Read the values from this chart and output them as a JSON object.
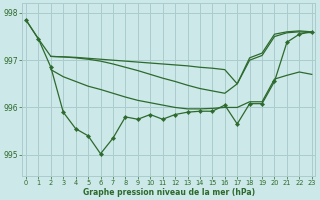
{
  "background_color": "#cce8e8",
  "grid_color": "#aacccc",
  "line_color": "#2d6a2d",
  "xlabel": "Graphe pression niveau de la mer (hPa)",
  "ylim": [
    994.55,
    998.2
  ],
  "xlim": [
    -0.3,
    23.3
  ],
  "yticks": [
    995,
    996,
    997,
    998
  ],
  "xticks": [
    0,
    1,
    2,
    3,
    4,
    5,
    6,
    7,
    8,
    9,
    10,
    11,
    12,
    13,
    14,
    15,
    16,
    17,
    18,
    19,
    20,
    21,
    22,
    23
  ],
  "series": [
    {
      "x": [
        0,
        1,
        2,
        3,
        4,
        5,
        6,
        7,
        8,
        9,
        10,
        11,
        12,
        13,
        14,
        15,
        16,
        17,
        18,
        19,
        20,
        21,
        22,
        23
      ],
      "y": [
        997.85,
        997.45,
        996.85,
        995.9,
        995.55,
        995.4,
        995.02,
        995.35,
        995.8,
        995.75,
        995.85,
        995.75,
        995.85,
        995.9,
        995.92,
        995.92,
        996.05,
        995.65,
        996.08,
        996.08,
        996.55,
        997.38,
        997.55,
        997.6
      ],
      "has_markers": true
    },
    {
      "x": [
        0,
        1,
        2,
        3,
        4,
        5,
        6,
        7,
        8,
        9,
        10,
        11,
        12,
        13,
        14,
        15,
        16,
        17,
        18,
        19,
        20,
        21,
        22,
        23
      ],
      "y": [
        997.85,
        997.45,
        997.08,
        997.07,
        997.06,
        997.04,
        997.02,
        997.0,
        996.98,
        996.96,
        996.94,
        996.92,
        996.9,
        996.88,
        996.85,
        996.83,
        996.8,
        996.5,
        997.05,
        997.15,
        997.55,
        997.6,
        997.62,
        997.6
      ],
      "has_markers": false
    },
    {
      "x": [
        2,
        3,
        4,
        5,
        6,
        7,
        8,
        9,
        10,
        11,
        12,
        13,
        14,
        15,
        16,
        17,
        18,
        19,
        20,
        21,
        22,
        23
      ],
      "y": [
        997.08,
        997.07,
        997.05,
        997.02,
        996.98,
        996.92,
        996.85,
        996.78,
        996.7,
        996.62,
        996.55,
        996.47,
        996.4,
        996.35,
        996.3,
        996.5,
        997.0,
        997.1,
        997.5,
        997.58,
        997.6,
        997.58
      ],
      "has_markers": false
    },
    {
      "x": [
        2,
        3,
        4,
        5,
        6,
        7,
        8,
        9,
        10,
        11,
        12,
        13,
        14,
        15,
        16,
        17,
        18,
        19,
        20,
        21,
        22,
        23
      ],
      "y": [
        996.8,
        996.65,
        996.55,
        996.45,
        996.38,
        996.3,
        996.22,
        996.15,
        996.1,
        996.05,
        996.0,
        995.97,
        995.97,
        995.98,
        996.0,
        996.0,
        996.12,
        996.12,
        996.6,
        996.68,
        996.75,
        996.7
      ],
      "has_markers": false
    }
  ]
}
